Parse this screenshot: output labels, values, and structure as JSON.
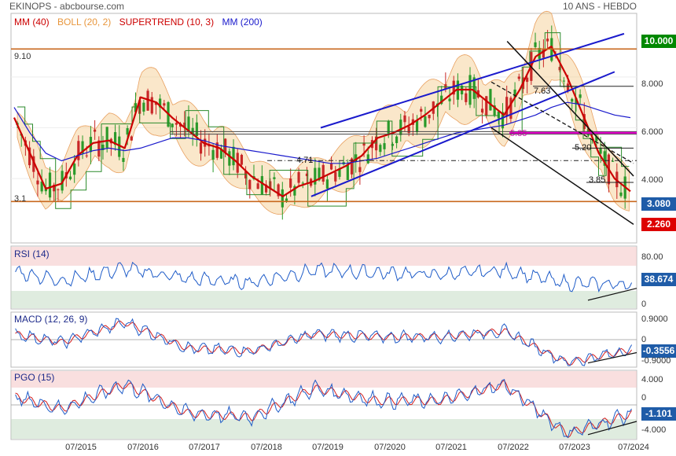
{
  "header": {
    "left": "EKINOPS - abcbourse.com",
    "right": "10 ANS - HEBDO"
  },
  "legend": [
    {
      "text": "MM (40)",
      "color": "#cc0000"
    },
    {
      "text": "BOLL (20, 2)",
      "color": "#e8963c"
    },
    {
      "text": "SUPERTREND (10, 3)",
      "color": "#cc0000"
    },
    {
      "text": "MM (200)",
      "color": "#1a1acc"
    }
  ],
  "colors": {
    "tag_green": "#008800",
    "tag_red": "#dd0000",
    "tag_blue": "#1f5ca8",
    "zone_red": "#f4c4c4",
    "zone_green": "#c4dcc4"
  },
  "main_tags": {
    "high": "10.000",
    "last": "3.080",
    "low": "2.260"
  },
  "main_ticks": [
    "8.000",
    "6.000",
    "4.000"
  ],
  "annotations": {
    "res": "9.10",
    "sup": "3.1",
    "a471": "4.71",
    "a763": "7.63",
    "a585": "5.85",
    "a520": "5.20",
    "a385": "3.85"
  },
  "panels": {
    "rsi": {
      "label": "RSI (14)",
      "value": "38.674",
      "ticks": [
        "80.00",
        "0"
      ]
    },
    "macd": {
      "label": "MACD (12, 26, 9)",
      "value": "-0.3556",
      "ticks": [
        "0.9000",
        "0",
        "-0.9000"
      ]
    },
    "pgo": {
      "label": "PGO (15)",
      "value": "-1.101",
      "ticks": [
        "4.000",
        "0",
        "-4.000"
      ]
    }
  },
  "xticks": [
    "07/2015",
    "07/2016",
    "07/2017",
    "07/2018",
    "07/2019",
    "07/2020",
    "07/2021",
    "07/2022",
    "07/2023",
    "07/2024"
  ],
  "chart_data": [
    {
      "type": "line",
      "title": "EKINOPS - abcbourse.com",
      "subtitle": "10 ANS - HEBDO",
      "x": [
        "2014-10",
        "2015-01",
        "2015-04",
        "2015-07",
        "2015-10",
        "2016-01",
        "2016-04",
        "2016-07",
        "2016-10",
        "2017-01",
        "2017-04",
        "2017-07",
        "2017-10",
        "2018-01",
        "2018-04",
        "2018-07",
        "2018-10",
        "2019-01",
        "2019-04",
        "2019-07",
        "2019-10",
        "2020-01",
        "2020-04",
        "2020-07",
        "2020-10",
        "2021-01",
        "2021-04",
        "2021-07",
        "2021-10",
        "2022-01",
        "2022-04",
        "2022-07",
        "2022-10",
        "2023-01",
        "2023-04",
        "2023-07",
        "2023-10",
        "2024-01",
        "2024-04",
        "2024-07"
      ],
      "series": [
        {
          "name": "MM (40)",
          "values": [
            6.4,
            5.0,
            3.6,
            3.8,
            4.9,
            5.4,
            5.5,
            5.2,
            7.2,
            7.0,
            6.4,
            5.9,
            5.4,
            5.2,
            4.7,
            4.1,
            3.7,
            3.3,
            3.7,
            3.9,
            4.2,
            4.5,
            4.9,
            5.6,
            5.8,
            6.1,
            6.5,
            7.0,
            7.5,
            7.5,
            7.0,
            6.5,
            7.5,
            8.8,
            9.2,
            8.0,
            6.5,
            5.0,
            4.0,
            3.5
          ]
        },
        {
          "name": "MM (200)",
          "values": [
            6.8,
            5.8,
            5.0,
            4.7,
            4.9,
            5.1,
            5.2,
            5.1,
            5.2,
            5.4,
            5.6,
            5.6,
            5.5,
            5.3,
            5.2,
            5.1,
            5.0,
            4.9,
            4.8,
            4.7,
            4.6,
            4.6,
            4.7,
            4.8,
            5.0,
            5.2,
            5.4,
            5.6,
            5.8,
            5.9,
            6.0,
            6.1,
            6.3,
            6.5,
            6.8,
            7.0,
            6.9,
            6.7,
            6.5,
            6.4
          ]
        }
      ],
      "ylim": [
        1.5,
        10.5
      ],
      "price_levels": {
        "resistance": 9.1,
        "support": 3.1,
        "last": 3.08,
        "low_target": 2.26
      },
      "legend_position": "top-left"
    },
    {
      "type": "line",
      "title": "RSI (14)",
      "x": [
        "2014-10",
        "2015-07",
        "2016-07",
        "2017-07",
        "2018-07",
        "2019-07",
        "2020-07",
        "2021-07",
        "2022-07",
        "2023-07",
        "2024-07"
      ],
      "series": [
        {
          "values": [
            60,
            45,
            65,
            48,
            42,
            62,
            58,
            55,
            62,
            40,
            38.674
          ]
        }
      ],
      "ylim": [
        0,
        100
      ]
    },
    {
      "type": "line",
      "title": "MACD (12, 26, 9)",
      "x": [
        "2014-10",
        "2015-07",
        "2016-07",
        "2017-07",
        "2018-07",
        "2019-07",
        "2020-07",
        "2021-07",
        "2022-07",
        "2023-07",
        "2024-07"
      ],
      "series": [
        {
          "values": [
            0.2,
            -0.1,
            0.6,
            -0.3,
            -0.4,
            0.2,
            0.1,
            0.1,
            0.3,
            -0.8,
            -0.3556
          ]
        }
      ],
      "ylim": [
        -0.9,
        0.9
      ]
    },
    {
      "type": "line",
      "title": "PGO (15)",
      "x": [
        "2014-10",
        "2015-07",
        "2016-07",
        "2017-07",
        "2018-07",
        "2019-07",
        "2020-07",
        "2021-07",
        "2022-07",
        "2023-07",
        "2024-07"
      ],
      "series": [
        {
          "values": [
            1.0,
            -0.5,
            2.5,
            -1.0,
            -1.5,
            2.0,
            0.5,
            0.5,
            2.5,
            -3.5,
            -1.101
          ]
        }
      ],
      "ylim": [
        -4,
        4
      ]
    }
  ]
}
